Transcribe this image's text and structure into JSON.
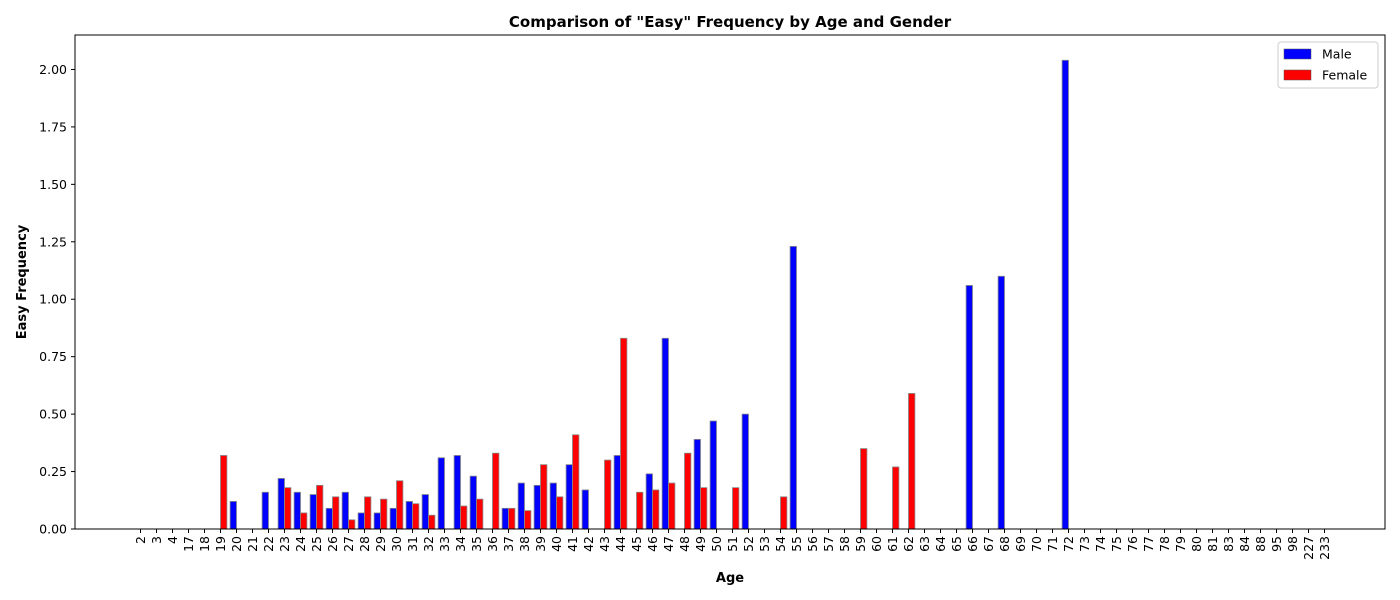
{
  "chart_data": {
    "type": "bar",
    "title": "Comparison of \"Easy\" Frequency by Age and Gender",
    "xlabel": "Age",
    "ylabel": "Easy Frequency",
    "ylim": [
      0,
      2.15
    ],
    "yticks": [
      "0.00",
      "0.25",
      "0.50",
      "0.75",
      "1.00",
      "1.25",
      "1.50",
      "1.75",
      "2.00"
    ],
    "grid": false,
    "legend_position": "top-right",
    "categories": [
      "2",
      "3",
      "4",
      "17",
      "18",
      "19",
      "20",
      "21",
      "22",
      "23",
      "24",
      "25",
      "26",
      "27",
      "28",
      "29",
      "30",
      "31",
      "32",
      "33",
      "34",
      "35",
      "36",
      "37",
      "38",
      "39",
      "40",
      "41",
      "42",
      "43",
      "44",
      "45",
      "46",
      "47",
      "48",
      "49",
      "50",
      "51",
      "52",
      "53",
      "54",
      "55",
      "56",
      "57",
      "58",
      "59",
      "60",
      "61",
      "62",
      "63",
      "64",
      "65",
      "66",
      "67",
      "68",
      "69",
      "70",
      "71",
      "72",
      "73",
      "74",
      "75",
      "76",
      "77",
      "78",
      "79",
      "80",
      "81",
      "83",
      "84",
      "88",
      "95",
      "98",
      "227",
      "233"
    ],
    "series": [
      {
        "name": "Male",
        "color": "#0000ff",
        "values": [
          0,
          0,
          0,
          0,
          0,
          0,
          0.12,
          0,
          0.16,
          0.22,
          0.16,
          0.15,
          0.09,
          0.16,
          0.07,
          0.07,
          0.09,
          0.12,
          0.15,
          0.31,
          0.32,
          0.23,
          0,
          0.09,
          0.2,
          0.19,
          0.2,
          0.28,
          0.17,
          0,
          0.32,
          0,
          0.24,
          0.83,
          0,
          0.39,
          0.47,
          0,
          0.5,
          0,
          0,
          1.23,
          0,
          0,
          0,
          0,
          0,
          0,
          0,
          0,
          0,
          0,
          1.06,
          0,
          1.1,
          0,
          0,
          0,
          2.04,
          0,
          0,
          0,
          0,
          0,
          0,
          0,
          0,
          0,
          0,
          0,
          0,
          0,
          0,
          0,
          0
        ]
      },
      {
        "name": "Female",
        "color": "#ff0000",
        "values": [
          0,
          0,
          0,
          0,
          0,
          0.32,
          0,
          0,
          0,
          0.18,
          0.07,
          0.19,
          0.14,
          0.04,
          0.14,
          0.13,
          0.21,
          0.11,
          0.06,
          0,
          0.1,
          0.13,
          0.33,
          0.09,
          0.08,
          0.28,
          0.14,
          0.41,
          0,
          0.3,
          0.83,
          0.16,
          0.17,
          0.2,
          0.33,
          0.18,
          0,
          0.18,
          0,
          0,
          0.14,
          0,
          0,
          0,
          0,
          0.35,
          0,
          0.27,
          0.59,
          0,
          0,
          0,
          0,
          0,
          0,
          0,
          0,
          0,
          0,
          0,
          0,
          0,
          0,
          0,
          0,
          0,
          0,
          0,
          0,
          0,
          0,
          0,
          0,
          0,
          0
        ]
      }
    ]
  }
}
